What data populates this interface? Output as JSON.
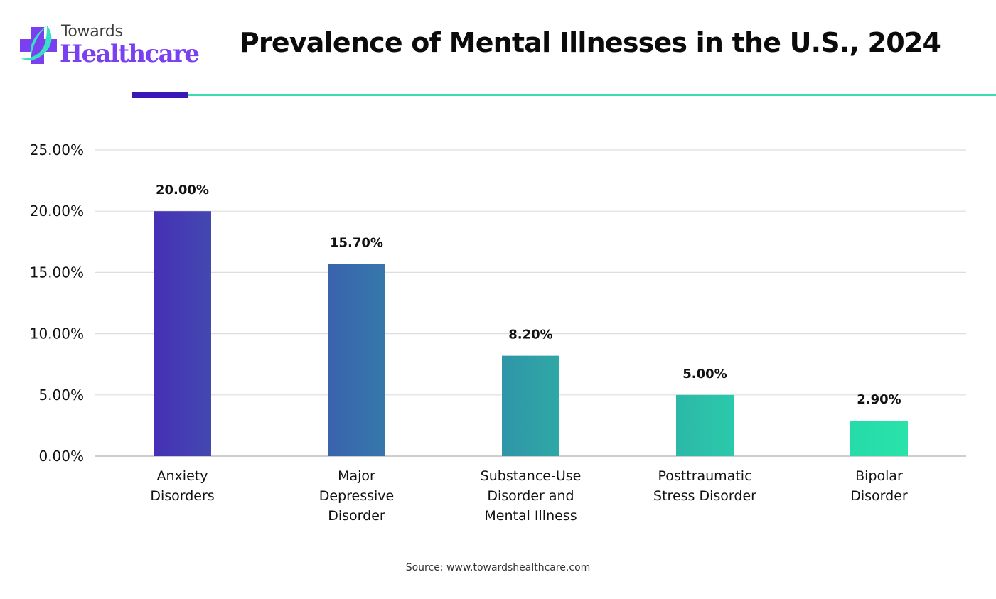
{
  "brand": {
    "line1": "Towards",
    "line2": "Healthcare",
    "icon": "cross-leaf-icon",
    "colors": {
      "cross": "#7a3ff0",
      "leaf": "#36e0c0",
      "text_dark": "#3d3d3d"
    }
  },
  "header": {
    "accent_colors": {
      "dark": "#3a18b8",
      "teal": "#3ddcb0"
    }
  },
  "chart_data": {
    "type": "bar",
    "title": "Prevalence of Mental Illnesses in the U.S., 2024",
    "xlabel": "",
    "ylabel": "",
    "categories": [
      [
        "Anxiety",
        "Disorders"
      ],
      [
        "Major",
        "Depressive",
        "Disorder"
      ],
      [
        "Substance-Use",
        "Disorder and",
        "Mental Illness"
      ],
      [
        "Posttraumatic",
        "Stress Disorder"
      ],
      [
        "Bipolar",
        "Disorder"
      ]
    ],
    "values": [
      20.0,
      15.7,
      8.2,
      5.0,
      2.9
    ],
    "value_labels": [
      "20.00%",
      "15.70%",
      "8.20%",
      "5.00%",
      "2.90%"
    ],
    "bar_colors": [
      [
        "#4530b6",
        "#4448b0"
      ],
      [
        "#3a62ae",
        "#3578aa"
      ],
      [
        "#2f95a8",
        "#2fa8a6"
      ],
      [
        "#2cb8a8",
        "#2bc9ab"
      ],
      [
        "#26dba9",
        "#28e3aa"
      ]
    ],
    "ylim": [
      0,
      25
    ],
    "yticks": [
      0,
      5,
      10,
      15,
      20,
      25
    ],
    "ytick_labels": [
      "0.00%",
      "5.00%",
      "10.00%",
      "15.00%",
      "20.00%",
      "25.00%"
    ],
    "grid": true,
    "legend": "none"
  },
  "footer": {
    "source": "Source: www.towardshealthcare.com"
  }
}
